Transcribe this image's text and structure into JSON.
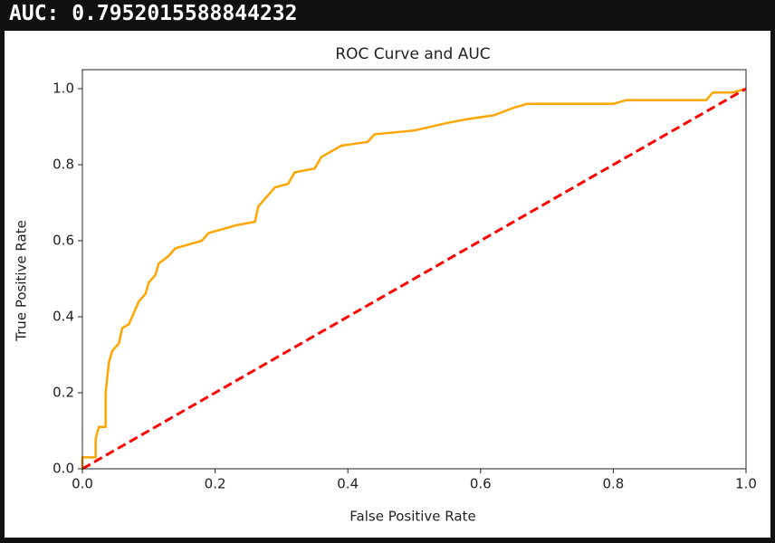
{
  "output_text": "AUC: 0.7952015588844232",
  "chart_data": {
    "type": "line",
    "title": "ROC Curve and AUC",
    "xlabel": "False Positive Rate",
    "ylabel": "True Positive Rate",
    "xlim": [
      0,
      1
    ],
    "ylim": [
      0,
      1.05
    ],
    "xticks": [
      {
        "value": 0,
        "label": "0.0"
      },
      0.2,
      0.4,
      0.6,
      0.8,
      {
        "value": 1,
        "label": "1.0"
      }
    ],
    "yticks": [
      {
        "value": 0,
        "label": "0.0"
      },
      0.2,
      0.4,
      0.6,
      0.8,
      {
        "value": 1,
        "label": "1.0"
      }
    ],
    "grid": false,
    "series": [
      {
        "color": "#ffa500",
        "linestyle": "solid",
        "x": [
          0,
          0,
          0.02,
          0.02,
          0.025,
          0.035,
          0.035,
          0.04,
          0.045,
          0.055,
          0.06,
          0.07,
          0.08,
          0.085,
          0.095,
          0.1,
          0.11,
          0.115,
          0.13,
          0.14,
          0.16,
          0.18,
          0.19,
          0.21,
          0.23,
          0.26,
          0.265,
          0.28,
          0.29,
          0.31,
          0.32,
          0.35,
          0.36,
          0.38,
          0.39,
          0.43,
          0.44,
          0.5,
          0.55,
          0.58,
          0.62,
          0.65,
          0.67,
          0.8,
          0.82,
          0.94,
          0.95,
          0.98,
          1
        ],
        "values": [
          0,
          0.03,
          0.03,
          0.08,
          0.11,
          0.11,
          0.2,
          0.28,
          0.31,
          0.33,
          0.37,
          0.38,
          0.42,
          0.44,
          0.46,
          0.49,
          0.51,
          0.54,
          0.56,
          0.58,
          0.59,
          0.6,
          0.62,
          0.63,
          0.64,
          0.65,
          0.69,
          0.72,
          0.74,
          0.75,
          0.78,
          0.79,
          0.82,
          0.84,
          0.85,
          0.86,
          0.88,
          0.89,
          0.91,
          0.92,
          0.93,
          0.95,
          0.96,
          0.96,
          0.97,
          0.97,
          0.99,
          0.99,
          1
        ]
      },
      {
        "color": "#ff0000",
        "linestyle": "dashed",
        "x": [
          0,
          1
        ],
        "values": [
          0,
          1
        ]
      }
    ]
  }
}
